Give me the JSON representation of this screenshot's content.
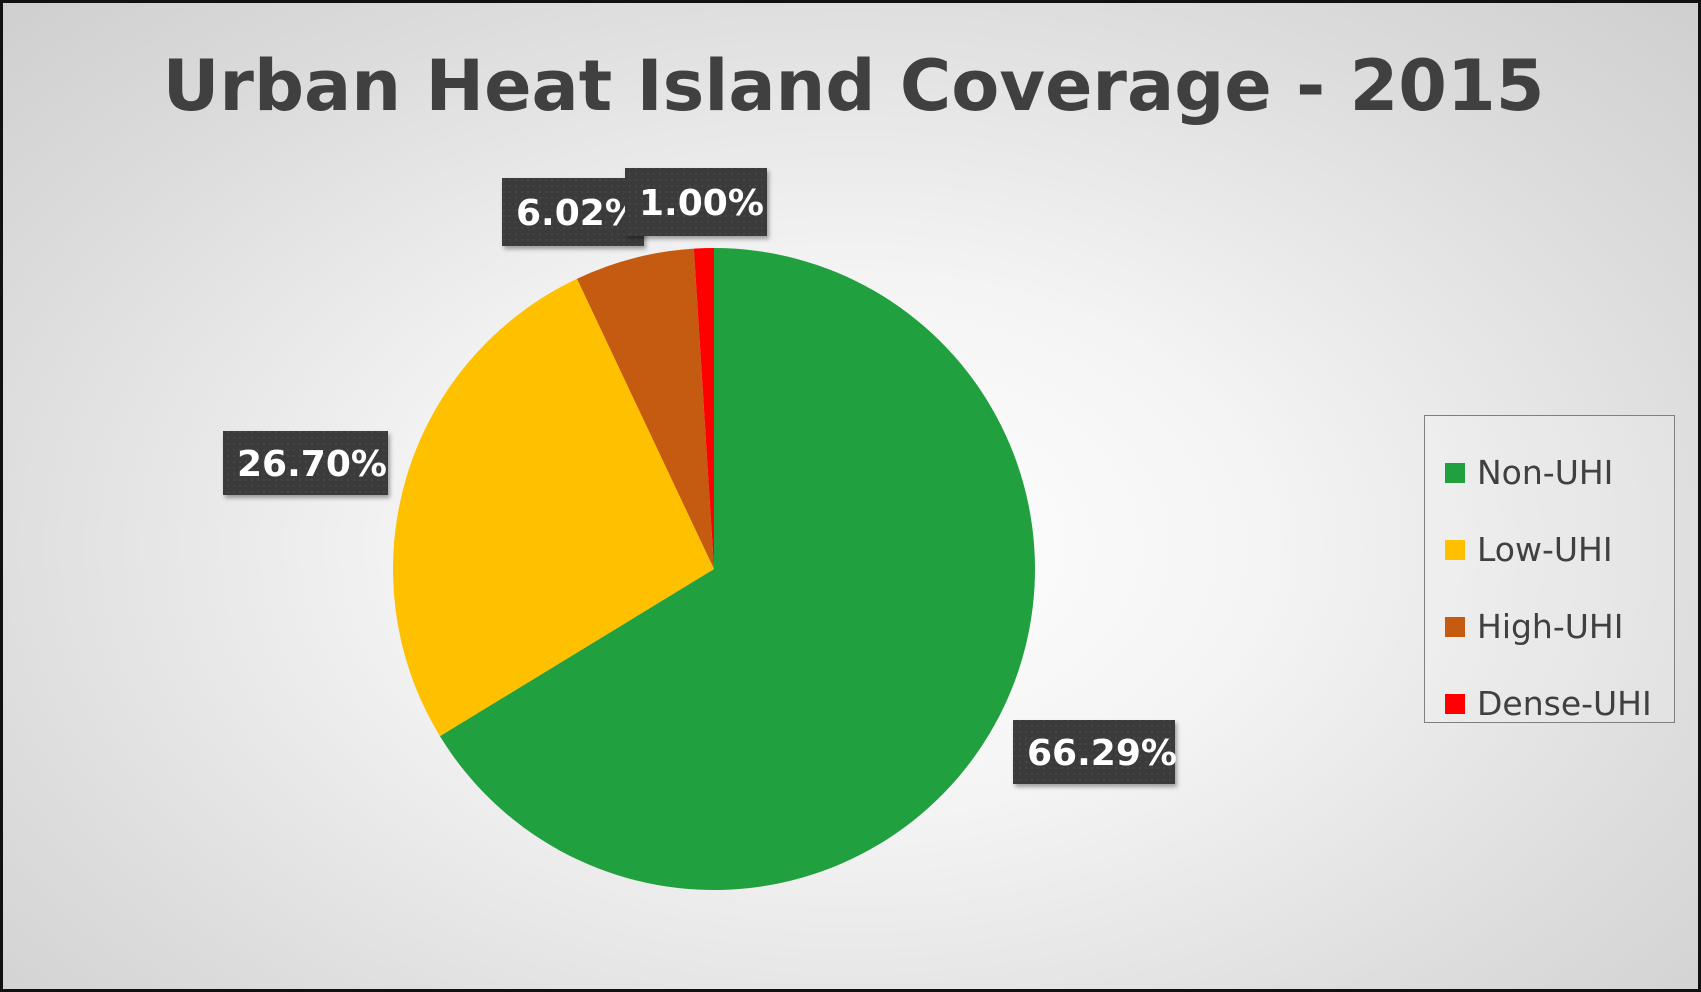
{
  "chart_data": {
    "type": "pie",
    "title": "Urban Heat Island Coverage - 2015",
    "categories": [
      "Non-UHI",
      "Low-UHI",
      "High-UHI",
      "Dense-UHI"
    ],
    "values": [
      66.29,
      26.7,
      6.02,
      1.0
    ],
    "data_labels": [
      "66.29%",
      "26.70%",
      "6.02%",
      "1.00%"
    ],
    "colors": [
      "#21a040",
      "#ffc000",
      "#c55a11",
      "#ff0000"
    ],
    "label_box_color": "#3a3a3a",
    "legend_placement": "right",
    "start_angle_deg": 0,
    "direction": "clockwise"
  }
}
